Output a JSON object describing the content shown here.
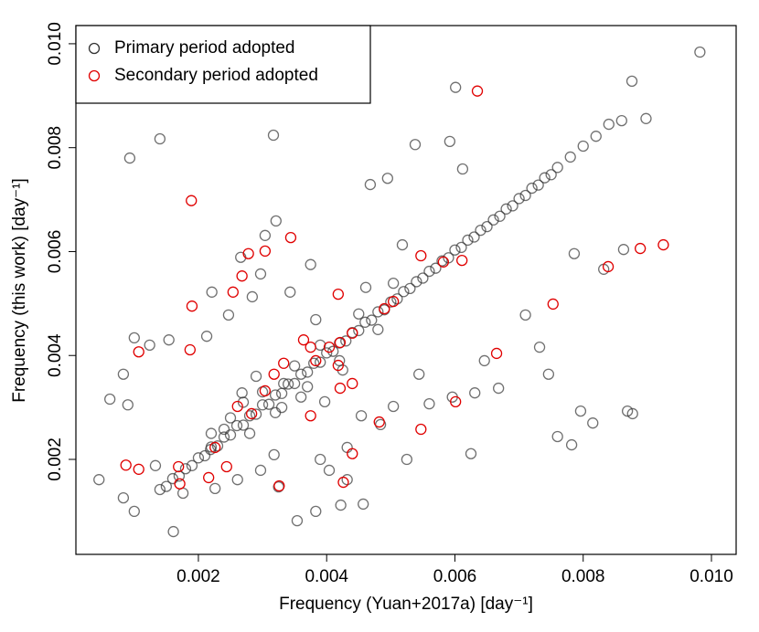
{
  "chart_data": {
    "type": "scatter",
    "xlabel": "Frequency (Yuan+2017a) [day⁻¹]",
    "ylabel": "Frequency (this work) [day⁻¹]",
    "xlim": [
      9e-05,
      0.010385
    ],
    "ylim": [
      0.000172,
      0.01035
    ],
    "xticks": [
      0.002,
      0.004,
      0.006,
      0.008,
      {
        "value": 0.01,
        "label": "0.010"
      }
    ],
    "yticks": [
      0.002,
      0.004,
      0.006,
      0.008,
      {
        "value": 0.01,
        "label": "0.010"
      }
    ],
    "legend": "top-left",
    "series": [
      {
        "name": "Primary period adopted",
        "color": "#333333",
        "x": [
          0.00062,
          0.00093,
          0.0014,
          0.00317,
          0.00601,
          0.00982,
          0.00876,
          0.00898,
          0.00538,
          0.00592,
          0.00468,
          0.00495,
          0.00612,
          0.00518,
          0.00321,
          0.00304,
          0.00266,
          0.00221,
          0.00213,
          0.001,
          0.00124,
          0.00154,
          0.00083,
          0.0009,
          0.00045,
          0.00083,
          0.001,
          0.00161,
          0.00354,
          0.00383,
          0.00422,
          0.00457,
          0.00525,
          0.00625,
          0.00544,
          0.00646,
          0.00668,
          0.0071,
          0.00732,
          0.00746,
          0.0076,
          0.00782,
          0.00796,
          0.00815,
          0.00869,
          0.00877,
          0.00786,
          0.00863,
          0.00832,
          0.00454,
          0.00504,
          0.0056,
          0.00596,
          0.00631,
          0.00484,
          0.00432,
          0.0039,
          0.00318,
          0.00297,
          0.00325,
          0.00261,
          0.00226,
          0.00176,
          0.00133,
          0.00333,
          0.0029,
          0.00268,
          0.00375,
          0.00343,
          0.00383,
          0.00461,
          0.00504,
          0.00425,
          0.00397,
          0.0024,
          0.00219,
          0.00404,
          0.00432,
          0.00247,
          0.00284,
          0.00297,
          0.0014,
          0.0015,
          0.0016,
          0.0017,
          0.0018,
          0.0019,
          0.002,
          0.0021,
          0.0022,
          0.0023,
          0.0024,
          0.0025,
          0.0026,
          0.0027,
          0.0028,
          0.0029,
          0.003,
          0.0031,
          0.0032,
          0.0033,
          0.0034,
          0.0035,
          0.0036,
          0.0037,
          0.0038,
          0.0039,
          0.004,
          0.0041,
          0.0042,
          0.0043,
          0.0044,
          0.0045,
          0.0046,
          0.0047,
          0.0048,
          0.0049,
          0.005,
          0.0051,
          0.0052,
          0.0053,
          0.0054,
          0.0055,
          0.0056,
          0.0057,
          0.0058,
          0.0059,
          0.006,
          0.0061,
          0.0062,
          0.0063,
          0.0064,
          0.0065,
          0.0066,
          0.0067,
          0.0068,
          0.0069,
          0.007,
          0.0071,
          0.0072,
          0.0073,
          0.0074,
          0.0075,
          0.0076,
          0.0078,
          0.008,
          0.0082,
          0.0084,
          0.0086,
          0.0025,
          0.0028,
          0.003,
          0.0033,
          0.0035,
          0.0037,
          0.0039,
          0.0042,
          0.0045,
          0.0048,
          0.0022,
          0.0027,
          0.0032,
          0.0036
        ],
        "values": [
          0.00316,
          0.0078,
          0.00817,
          0.00824,
          0.00916,
          0.00984,
          0.00928,
          0.00856,
          0.00806,
          0.00812,
          0.00729,
          0.00741,
          0.00759,
          0.00613,
          0.00659,
          0.00631,
          0.00589,
          0.00522,
          0.00437,
          0.00434,
          0.0042,
          0.0043,
          0.00364,
          0.00305,
          0.00161,
          0.00126,
          0.001,
          0.00061,
          0.00082,
          0.001,
          0.00112,
          0.00114,
          0.002,
          0.00211,
          0.00364,
          0.0039,
          0.00337,
          0.00478,
          0.00416,
          0.00364,
          0.00244,
          0.00228,
          0.00293,
          0.0027,
          0.00293,
          0.00288,
          0.00596,
          0.00604,
          0.00566,
          0.00284,
          0.00302,
          0.00307,
          0.0032,
          0.00328,
          0.00267,
          0.00223,
          0.002,
          0.00209,
          0.00179,
          0.00147,
          0.00161,
          0.00144,
          0.00135,
          0.00188,
          0.00346,
          0.0036,
          0.00328,
          0.00575,
          0.00522,
          0.00469,
          0.00531,
          0.00539,
          0.00372,
          0.00311,
          0.00258,
          0.00219,
          0.00179,
          0.00161,
          0.00478,
          0.00513,
          0.00557,
          0.00142,
          0.00148,
          0.00163,
          0.00168,
          0.00182,
          0.00188,
          0.00203,
          0.00207,
          0.00224,
          0.00226,
          0.00243,
          0.00247,
          0.00265,
          0.00266,
          0.00284,
          0.00287,
          0.00305,
          0.00306,
          0.00324,
          0.00327,
          0.00345,
          0.00346,
          0.00364,
          0.00368,
          0.00385,
          0.00387,
          0.00405,
          0.00408,
          0.00424,
          0.00428,
          0.00444,
          0.00448,
          0.00464,
          0.00468,
          0.00484,
          0.00488,
          0.00503,
          0.00509,
          0.00523,
          0.00529,
          0.00542,
          0.00549,
          0.00562,
          0.00568,
          0.00582,
          0.00588,
          0.00603,
          0.00608,
          0.00622,
          0.00628,
          0.00641,
          0.00648,
          0.00661,
          0.00668,
          0.00682,
          0.00688,
          0.00702,
          0.00708,
          0.00722,
          0.00728,
          0.00742,
          0.00748,
          0.00762,
          0.00782,
          0.00803,
          0.00822,
          0.00845,
          0.00852,
          0.0028,
          0.0025,
          0.0033,
          0.003,
          0.0038,
          0.0034,
          0.0042,
          0.0039,
          0.0048,
          0.0045,
          0.0025,
          0.0031,
          0.0029,
          0.0032
        ]
      },
      {
        "name": "Secondary period adopted",
        "color": "#e00000",
        "x": [
          0.00189,
          0.00278,
          0.00304,
          0.00344,
          0.00635,
          0.00925,
          0.00889,
          0.00839,
          0.00753,
          0.00665,
          0.00601,
          0.00547,
          0.00482,
          0.0044,
          0.00426,
          0.00326,
          0.00216,
          0.00244,
          0.00169,
          0.00107,
          0.00087,
          0.00171,
          0.0019,
          0.00187,
          0.00107,
          0.00254,
          0.00268,
          0.00418,
          0.00611,
          0.00582,
          0.00547,
          0.00504,
          0.0049,
          0.0044,
          0.00421,
          0.00404,
          0.00383,
          0.00364,
          0.00375,
          0.00333,
          0.00318,
          0.00304,
          0.00283,
          0.00261,
          0.00226,
          0.0044,
          0.00375,
          0.00418,
          0.00421
        ],
        "values": [
          0.00698,
          0.00596,
          0.00601,
          0.00627,
          0.00909,
          0.00613,
          0.00606,
          0.00571,
          0.00499,
          0.00404,
          0.00311,
          0.00258,
          0.00272,
          0.00211,
          0.00156,
          0.00149,
          0.00165,
          0.00186,
          0.00186,
          0.00181,
          0.00189,
          0.00153,
          0.00495,
          0.00411,
          0.00407,
          0.00522,
          0.00553,
          0.00518,
          0.00583,
          0.0058,
          0.00592,
          0.00504,
          0.0049,
          0.00443,
          0.00425,
          0.00416,
          0.0039,
          0.0043,
          0.00416,
          0.00385,
          0.00364,
          0.00332,
          0.00288,
          0.00302,
          0.00223,
          0.00346,
          0.00284,
          0.00381,
          0.00337
        ]
      }
    ]
  }
}
